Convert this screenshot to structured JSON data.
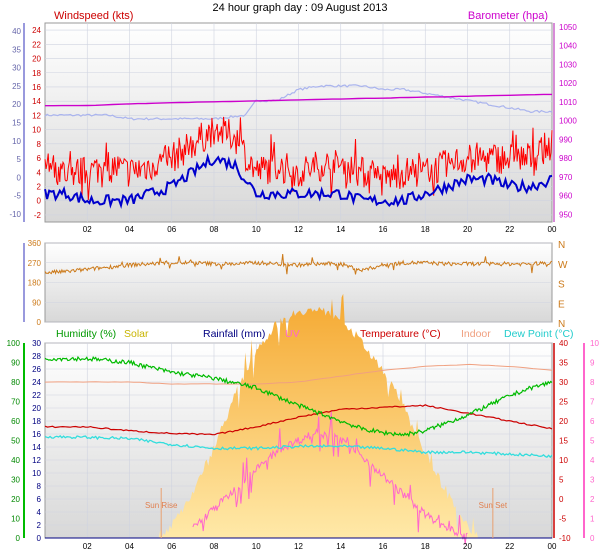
{
  "title": "24 hour graph day : 09 August 2013",
  "colors": {
    "wind_gust": "#ff0000",
    "wind_avg": "#0000cc",
    "baro": "#cc00cc",
    "baro_axis": "#cc66cc",
    "wind_dir": "#cc7a1a",
    "humidity": "#00bb00",
    "solar": "#f5a830",
    "solar_label": "#c8b400",
    "rainfall": "#000080",
    "uv": "#ff66cc",
    "temperature": "#cc0000",
    "indoor": "#f0a080",
    "dewpoint": "#33dddd",
    "left_axis": "#9999dd",
    "grid": "#cfd3e0",
    "plot_bg_top": "#ffffff",
    "plot_bg_bottom": "#d8d8d8"
  },
  "chart_data": [
    {
      "id": "wind-baro",
      "type": "line",
      "labels": {
        "left": "Windspeed (kts)",
        "right": "Barometer (hpa)"
      },
      "left_axis": {
        "inner_ticks": [
          24,
          22,
          20,
          18,
          16,
          14,
          12,
          10,
          8,
          6,
          4,
          2,
          0,
          -2
        ],
        "outer_ticks": [
          40,
          35,
          30,
          25,
          20,
          15,
          10,
          5,
          0,
          -5,
          -10
        ],
        "ylim": [
          -3,
          25
        ]
      },
      "right_axis": {
        "ticks": [
          1050,
          1040,
          1030,
          1020,
          1010,
          1000,
          990,
          980,
          970,
          960,
          950
        ],
        "ylim": [
          946,
          1052
        ]
      },
      "x_ticks": [
        "02",
        "04",
        "06",
        "08",
        "10",
        "12",
        "14",
        "16",
        "18",
        "20",
        "22",
        "00"
      ],
      "grid": true,
      "series": [
        {
          "key": "gust",
          "x": [
            0,
            1,
            2,
            3,
            4,
            5,
            6,
            7,
            8,
            9,
            10,
            11,
            12,
            13,
            14,
            15,
            16,
            17,
            18,
            19,
            20,
            21,
            22,
            23,
            24
          ],
          "values": [
            5,
            4,
            4,
            5,
            4,
            5,
            6,
            8,
            10,
            9,
            4,
            5,
            4,
            5,
            5,
            4,
            3,
            4,
            4,
            5,
            6,
            6,
            6,
            6,
            8
          ]
        },
        {
          "key": "avg",
          "x": [
            0,
            1,
            2,
            3,
            4,
            5,
            6,
            7,
            8,
            9,
            10,
            11,
            12,
            13,
            14,
            15,
            16,
            17,
            18,
            19,
            20,
            21,
            22,
            23,
            24
          ],
          "values": [
            1,
            1,
            0,
            0,
            0,
            1,
            2,
            4,
            6,
            5,
            1,
            1,
            1,
            1,
            1,
            0,
            0,
            0,
            1,
            2,
            3,
            3,
            2,
            2,
            3
          ]
        },
        {
          "key": "baro",
          "axis": "right",
          "x": [
            0,
            2,
            4,
            6,
            8,
            10,
            12,
            14,
            16,
            18,
            20,
            22,
            24
          ],
          "values": [
            1008,
            1008,
            1009,
            1009.5,
            1010,
            1010.5,
            1011,
            1011.5,
            1012,
            1012.5,
            1013,
            1013.5,
            1014
          ]
        },
        {
          "key": "outer_trace",
          "x": [
            0,
            2,
            3,
            4,
            6,
            8,
            9.5,
            10,
            11,
            12,
            13,
            14,
            15,
            16,
            17,
            18,
            19,
            20,
            21,
            22,
            23,
            24
          ],
          "values": [
            17,
            17,
            17,
            16,
            16,
            16,
            17,
            21,
            21,
            24,
            25,
            25,
            25,
            24,
            24,
            23,
            22,
            21,
            20,
            19,
            18,
            18
          ]
        }
      ]
    },
    {
      "id": "wind-dir",
      "type": "line",
      "left_axis": {
        "ticks": [
          360,
          270,
          180,
          90,
          0
        ],
        "ylim": [
          0,
          360
        ]
      },
      "right_labels": [
        "N",
        "W",
        "S",
        "E",
        "N"
      ],
      "series": [
        {
          "key": "direction",
          "x": [
            0,
            1,
            2,
            3,
            4,
            5,
            6,
            7,
            8,
            9,
            10,
            11,
            12,
            13,
            14,
            15,
            16,
            17,
            18,
            19,
            20,
            21,
            22,
            23,
            24
          ],
          "values": [
            225,
            230,
            240,
            250,
            260,
            265,
            270,
            270,
            265,
            265,
            270,
            265,
            260,
            265,
            265,
            235,
            260,
            270,
            270,
            265,
            265,
            265,
            265,
            265,
            270
          ]
        }
      ]
    },
    {
      "id": "weather",
      "type": "line",
      "labels": [
        {
          "key": "humidity",
          "text": "Humidity",
          "suffix": "(%)"
        },
        {
          "key": "solar",
          "text": "Solar"
        },
        {
          "key": "rainfall",
          "text": "Rainfall (mm)"
        },
        {
          "key": "uv",
          "text": "UV"
        },
        {
          "key": "temperature",
          "text": "Temperature (°C)"
        },
        {
          "key": "indoor",
          "text": "Indoor"
        },
        {
          "key": "dewpoint",
          "text": "Dew Point (°C)"
        }
      ],
      "humidity_axis": {
        "ticks": [
          100,
          90,
          80,
          70,
          60,
          50,
          40,
          30,
          20,
          10,
          0
        ],
        "ylim": [
          0,
          100
        ]
      },
      "rain_axis": {
        "ticks": [
          30,
          28,
          26,
          24,
          22,
          20,
          18,
          16,
          14,
          12,
          10,
          8,
          6,
          4,
          2,
          0
        ],
        "ylim": [
          0,
          30
        ]
      },
      "temp_axis": {
        "ticks": [
          40,
          35,
          30,
          25,
          20,
          15,
          10,
          5,
          0,
          -5,
          -10
        ],
        "ylim": [
          -10,
          40
        ]
      },
      "uv_axis": {
        "ticks": [
          10,
          9,
          8,
          7,
          6,
          5,
          4,
          3,
          2,
          1,
          0
        ],
        "ylim": [
          0,
          10
        ]
      },
      "x_ticks": [
        "02",
        "04",
        "06",
        "08",
        "10",
        "12",
        "14",
        "16",
        "18",
        "20",
        "22",
        "00"
      ],
      "annotations": [
        {
          "text": "Sun Rise",
          "hour": 5.5
        },
        {
          "text": "Sun Set",
          "hour": 21.2
        }
      ],
      "series": [
        {
          "key": "humidity",
          "x": [
            0,
            2,
            4,
            6,
            8,
            10,
            12,
            14,
            15,
            16,
            17,
            18,
            19,
            20,
            21,
            22,
            23,
            24
          ],
          "values": [
            92,
            92,
            90,
            85,
            82,
            77,
            68,
            60,
            56,
            54,
            53,
            55,
            59,
            63,
            68,
            73,
            77,
            80
          ]
        },
        {
          "key": "temperature",
          "x": [
            0,
            2,
            4,
            6,
            8,
            10,
            12,
            14,
            16,
            18,
            20,
            22,
            24
          ],
          "values": [
            18.5,
            18.5,
            17.5,
            16.8,
            16.5,
            18.5,
            21,
            23,
            23.5,
            24,
            22,
            20,
            18
          ]
        },
        {
          "key": "indoor",
          "x": [
            0,
            4,
            6,
            8,
            10,
            12,
            14,
            16,
            18,
            20,
            22,
            24
          ],
          "values": [
            30,
            30,
            29.5,
            29.5,
            29.5,
            30,
            31.5,
            33,
            34,
            34.5,
            34,
            33
          ]
        },
        {
          "key": "dewpoint",
          "x": [
            0,
            2,
            4,
            6,
            8,
            10,
            12,
            14,
            16,
            18,
            20,
            22,
            24
          ],
          "values": [
            16,
            15.8,
            15.5,
            14,
            13,
            13,
            13.5,
            13.5,
            13,
            12,
            12,
            11.5,
            11
          ]
        },
        {
          "key": "solar",
          "x": [
            5.3,
            6,
            7,
            8,
            9,
            10,
            11,
            12,
            13,
            14,
            15,
            16,
            17,
            18,
            19,
            20,
            20.5
          ],
          "values": [
            0,
            2,
            7,
            14,
            22,
            29,
            33,
            35,
            35,
            34,
            30,
            26,
            20,
            13,
            7,
            2,
            0
          ]
        },
        {
          "key": "uv",
          "x": [
            7,
            8,
            9,
            10,
            11,
            12,
            13,
            14,
            15,
            16,
            17,
            18,
            19,
            20
          ],
          "values": [
            0.5,
            1.5,
            2.5,
            3.5,
            4.5,
            5,
            5.5,
            5,
            4.2,
            3.2,
            2.2,
            1.2,
            0.5,
            0
          ]
        },
        {
          "key": "rainfall",
          "x": [
            0,
            24
          ],
          "values": [
            0,
            0
          ]
        }
      ]
    }
  ]
}
